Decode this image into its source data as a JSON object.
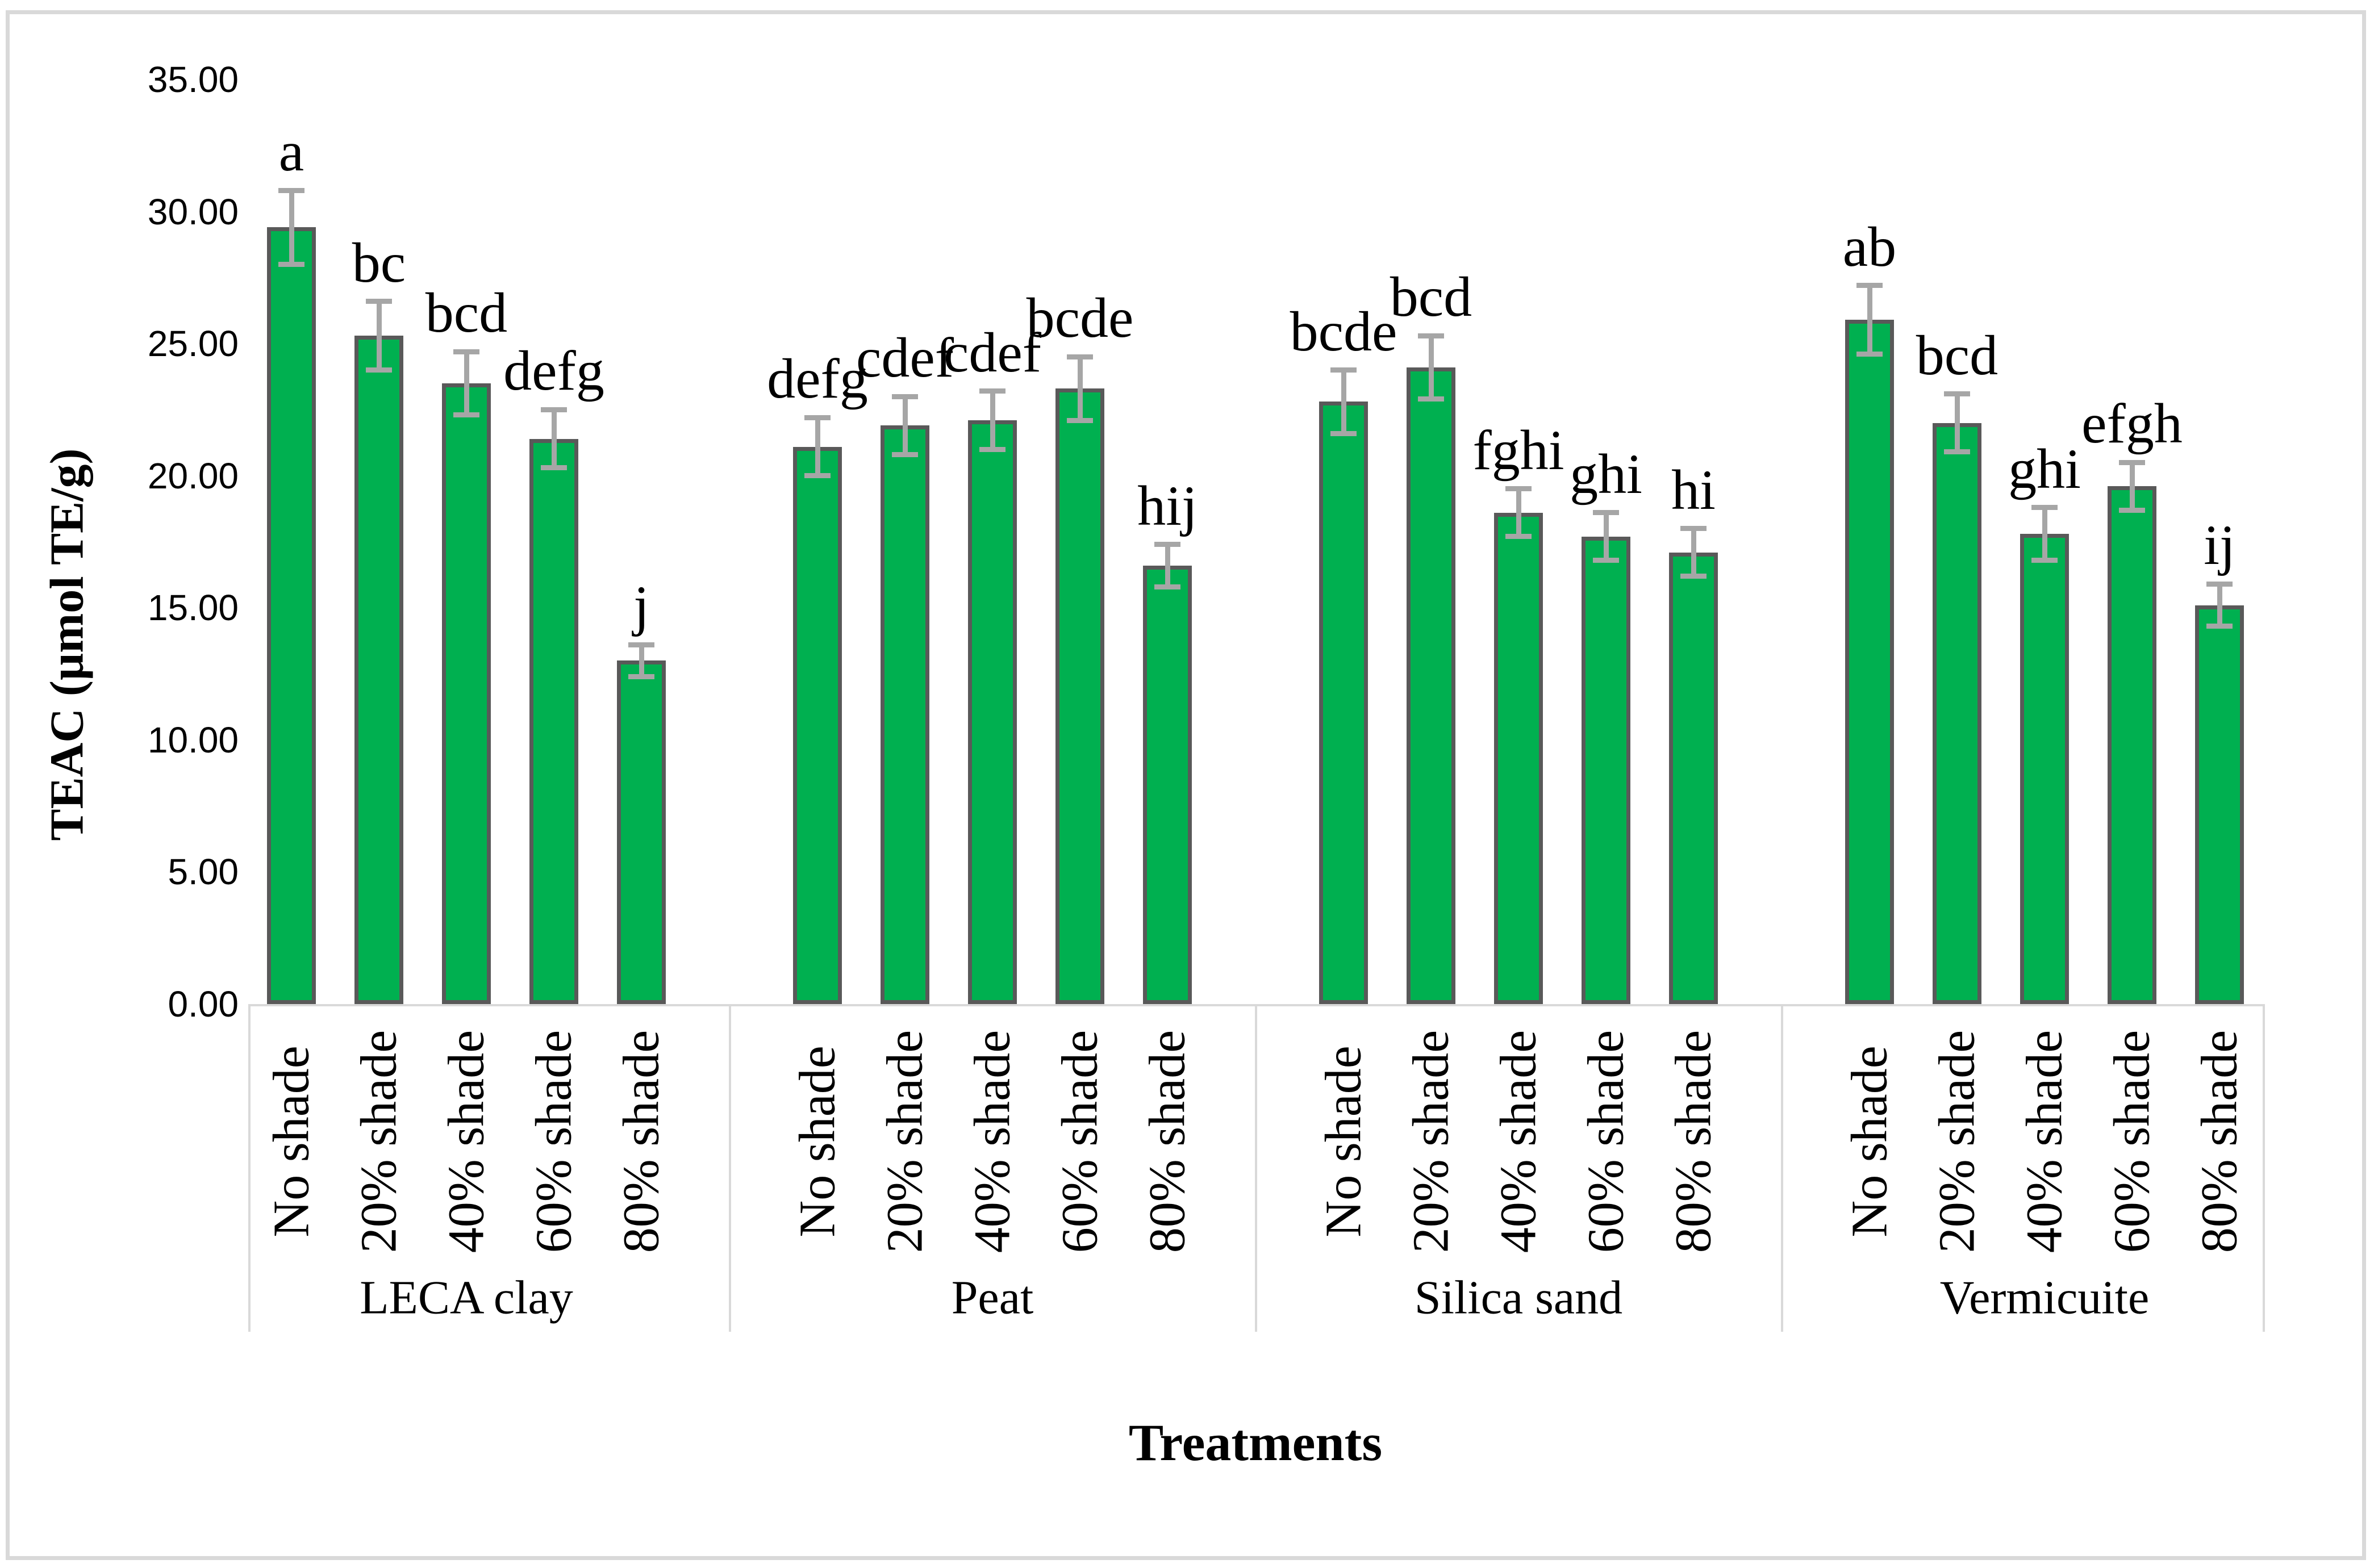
{
  "chart_data": {
    "type": "bar",
    "title": "",
    "xlabel": "Treatments",
    "ylabel": "TEAC (µmol TE/g)",
    "ylim": [
      0,
      35
    ],
    "ytick_step": 5,
    "yticks": [
      "0.00",
      "5.00",
      "10.00",
      "15.00",
      "20.00",
      "25.00",
      "30.00",
      "35.00"
    ],
    "grid": false,
    "legend": "none",
    "colors": {
      "bar_fill": "#00B050",
      "bar_border": "#595959",
      "error_bar": "#A6A6A6",
      "axis_line": "#D9D9D9",
      "figure_border": "#D9D9D9",
      "text": "#000000"
    },
    "categories": [
      "No shade",
      "20% shade",
      "40% shade",
      "60% shade",
      "80% shade"
    ],
    "groups": [
      {
        "label": "LECA clay",
        "categories": [
          "No shade",
          "20% shade",
          "40% shade",
          "60% shade",
          "80% shade"
        ],
        "values": [
          29.4,
          25.3,
          23.5,
          21.4,
          13.0
        ],
        "errors": [
          1.4,
          1.3,
          1.2,
          1.1,
          0.6
        ],
        "letters": [
          "a",
          "bc",
          "bcd",
          "defg",
          "j"
        ]
      },
      {
        "label": "Peat",
        "categories": [
          "No shade",
          "20% shade",
          "40% shade",
          "60% shade",
          "80% shade"
        ],
        "values": [
          21.1,
          21.9,
          22.1,
          23.3,
          16.6
        ],
        "errors": [
          1.1,
          1.1,
          1.1,
          1.2,
          0.8
        ],
        "letters": [
          "defg",
          "cdef",
          "cdef",
          "bcde",
          "hij"
        ]
      },
      {
        "label": "Silica sand",
        "categories": [
          "No shade",
          "20% shade",
          "40% shade",
          "60% shade",
          "80% shade"
        ],
        "values": [
          22.8,
          24.1,
          18.6,
          17.7,
          17.1
        ],
        "errors": [
          1.2,
          1.2,
          0.9,
          0.9,
          0.9
        ],
        "letters": [
          "bcde",
          "bcd",
          "fghi",
          "ghi",
          "hi"
        ]
      },
      {
        "label": "Vermicuite",
        "categories": [
          "No shade",
          "20% shade",
          "40% shade",
          "60% shade",
          "80% shade"
        ],
        "values": [
          25.9,
          22.0,
          17.8,
          19.6,
          15.1
        ],
        "errors": [
          1.3,
          1.1,
          1.0,
          0.9,
          0.8
        ],
        "letters": [
          "ab",
          "bcd",
          "ghi",
          "efgh",
          "ij"
        ]
      }
    ]
  }
}
